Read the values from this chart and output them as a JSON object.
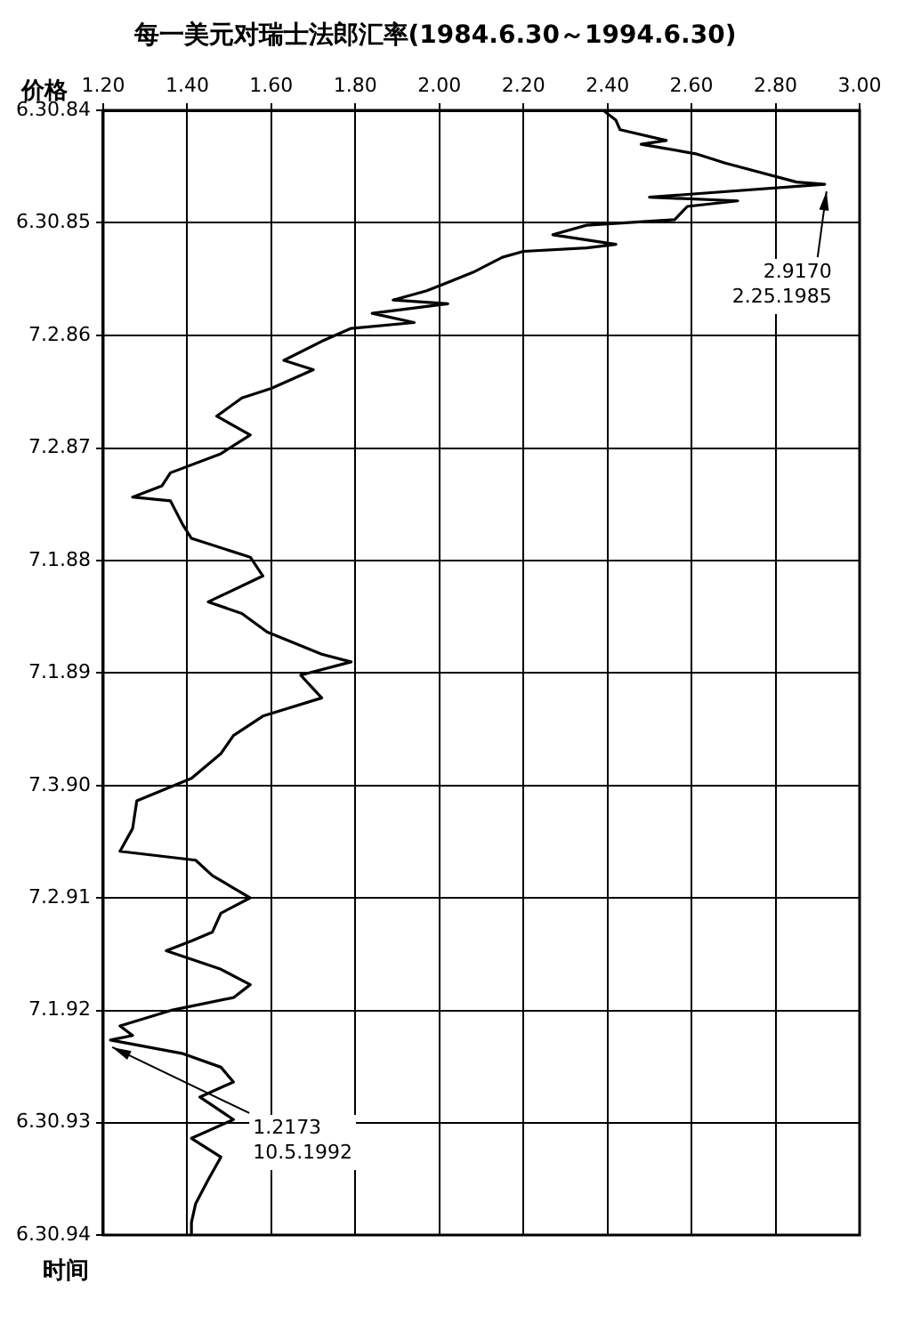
{
  "chart_data": {
    "type": "line",
    "orientation": "horizontal",
    "title": "每一美元对瑞士法郎汇率(1984.6.30～1994.6.30)",
    "xlabel": "价格",
    "ylabel": "时间",
    "x": [
      "1984-06-30",
      "1984-08-01",
      "1984-09-01",
      "1984-10-06",
      "1984-10-18",
      "1984-11-18",
      "1984-12-18",
      "1985-02-18",
      "1985-02-25",
      "1985-04-08",
      "1985-04-20",
      "1985-05-08",
      "1985-06-20",
      "1985-07-08",
      "1985-08-08",
      "1985-09-08",
      "1985-09-20",
      "1985-10-01",
      "1985-10-20",
      "1985-12-08",
      "1986-02-06",
      "1986-03-08",
      "1986-03-20",
      "1986-04-20",
      "1986-05-20",
      "1986-06-08",
      "1986-07-20",
      "1986-09-20",
      "1986-10-20",
      "1986-12-20",
      "1987-01-20",
      "1987-03-20",
      "1987-05-20",
      "1987-07-20",
      "1987-09-20",
      "1987-11-01",
      "1987-12-08",
      "1987-12-20",
      "1988-03-08",
      "1988-04-20",
      "1988-06-20",
      "1988-08-20",
      "1988-11-12",
      "1988-12-20",
      "1989-02-18",
      "1989-05-01",
      "1989-05-26",
      "1989-07-08",
      "1989-09-20",
      "1989-11-18",
      "1990-01-20",
      "1990-03-20",
      "1990-06-08",
      "1990-08-20",
      "1990-11-18",
      "1991-01-31",
      "1991-03-01",
      "1991-04-20",
      "1991-07-01",
      "1991-08-20",
      "1991-10-20",
      "1991-11-18",
      "1991-12-20",
      "1992-02-18",
      "1992-04-08",
      "1992-05-20",
      "1992-07-01",
      "1992-08-20",
      "1992-09-20",
      "1992-10-05",
      "1992-11-18",
      "1993-01-01",
      "1993-02-18",
      "1993-04-08",
      "1993-06-20",
      "1993-08-20",
      "1993-10-20",
      "1994-01-01",
      "1994-03-20",
      "1994-05-20",
      "1994-06-30"
    ],
    "series": [
      {
        "color": "#000000",
        "values": [
          2.39,
          2.42,
          2.43,
          2.54,
          2.48,
          2.61,
          2.68,
          2.85,
          2.917,
          2.5,
          2.71,
          2.59,
          2.56,
          2.35,
          2.27,
          2.42,
          2.35,
          2.2,
          2.15,
          2.08,
          1.97,
          1.89,
          2.02,
          1.84,
          1.94,
          1.79,
          1.72,
          1.63,
          1.7,
          1.6,
          1.53,
          1.47,
          1.55,
          1.48,
          1.36,
          1.34,
          1.27,
          1.36,
          1.39,
          1.41,
          1.55,
          1.58,
          1.45,
          1.53,
          1.59,
          1.72,
          1.79,
          1.67,
          1.72,
          1.58,
          1.51,
          1.48,
          1.41,
          1.28,
          1.27,
          1.24,
          1.42,
          1.46,
          1.55,
          1.48,
          1.46,
          1.41,
          1.35,
          1.48,
          1.55,
          1.51,
          1.36,
          1.24,
          1.27,
          1.2173,
          1.39,
          1.48,
          1.51,
          1.43,
          1.51,
          1.41,
          1.48,
          1.45,
          1.42,
          1.41,
          1.41
        ]
      }
    ],
    "ylim": [
      "1994-06-30",
      "1984-06-30"
    ],
    "yticks": [
      {
        "value": "1984-06-30",
        "label": "6.30.84"
      },
      {
        "value": "1985-06-30",
        "label": "6.30.85"
      },
      {
        "value": "1986-07-02",
        "label": "7.2.86"
      },
      {
        "value": "1987-07-02",
        "label": "7.2.87"
      },
      {
        "value": "1988-07-01",
        "label": "7.1.88"
      },
      {
        "value": "1989-07-01",
        "label": "7.1.89"
      },
      {
        "value": "1990-07-03",
        "label": "7.3.90"
      },
      {
        "value": "1991-07-02",
        "label": "7.2.91"
      },
      {
        "value": "1992-07-01",
        "label": "7.1.92"
      },
      {
        "value": "1993-06-30",
        "label": "6.30.93"
      },
      {
        "value": "1994-06-30",
        "label": "6.30.94"
      }
    ],
    "xlim": [
      1.2,
      3.0
    ],
    "xticks": [
      {
        "value": 1.2,
        "label": "1.20"
      },
      {
        "value": 1.4,
        "label": "1.40"
      },
      {
        "value": 1.6,
        "label": "1.60"
      },
      {
        "value": 1.8,
        "label": "1.80"
      },
      {
        "value": 2.0,
        "label": "2.00"
      },
      {
        "value": 2.2,
        "label": "2.20"
      },
      {
        "value": 2.4,
        "label": "2.40"
      },
      {
        "value": 2.6,
        "label": "2.60"
      },
      {
        "value": 2.8,
        "label": "2.80"
      },
      {
        "value": 3.0,
        "label": "3.00"
      }
    ],
    "grid": true,
    "annotations": [
      {
        "text": "2.9170\n2.25.1985",
        "x": 2.917,
        "y": "1985-02-25"
      },
      {
        "text": "1.2173\n10.5.1992",
        "x": 1.2173,
        "y": "1992-10-05"
      }
    ]
  }
}
